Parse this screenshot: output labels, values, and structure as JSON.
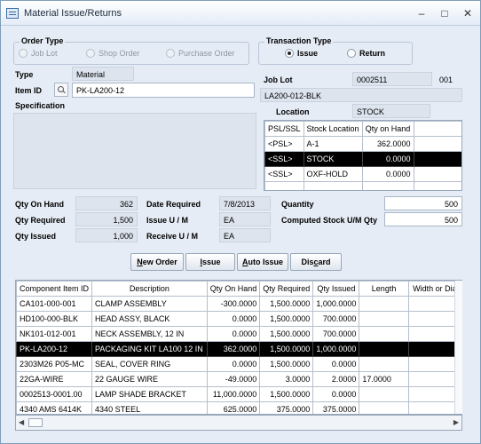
{
  "window": {
    "title": "Material Issue/Returns",
    "minimize": "–",
    "maximize": "□",
    "close": "✕"
  },
  "order_type": {
    "label": "Order Type",
    "options": [
      "Job Lot",
      "Shop Order",
      "Purchase Order"
    ]
  },
  "transaction_type": {
    "label": "Transaction Type",
    "options": [
      "Issue",
      "Return"
    ],
    "selected": "Issue"
  },
  "item": {
    "type_label": "Type",
    "type_value": "Material",
    "id_label": "Item ID",
    "id_value": "PK-LA200-12",
    "spec_label": "Specification"
  },
  "job": {
    "lot_label": "Job Lot",
    "lot_value": "0002511",
    "lot_suffix": "001",
    "lot_desc": "LA200-012-BLK",
    "location_label": "Location",
    "location_value": "STOCK"
  },
  "stock_grid": {
    "headers": [
      "PSL/SSL",
      "Stock Location",
      "Qty on Hand"
    ],
    "rows": [
      {
        "type": "<PSL>",
        "location": "A-1",
        "qty": "362.0000"
      },
      {
        "type": "<SSL>",
        "location": "STOCK",
        "qty": "0.0000"
      },
      {
        "type": "<SSL>",
        "location": "OXF-HOLD",
        "qty": "0.0000"
      }
    ],
    "selected_row": 1
  },
  "quantities": {
    "on_hand_label": "Qty On Hand",
    "on_hand": "362",
    "required_label": "Qty Required",
    "required": "1,500",
    "issued_label": "Qty Issued",
    "issued": "1,000",
    "date_required_label": "Date Required",
    "date_required": "7/8/2013",
    "issue_um_label": "Issue U / M",
    "issue_um": "EA",
    "receive_um_label": "Receive U / M",
    "receive_um": "EA",
    "quantity_label": "Quantity",
    "quantity": "500",
    "computed_label": "Computed Stock U/M Qty",
    "computed": "500"
  },
  "buttons": {
    "new_order_pre": "",
    "new_order_key": "N",
    "new_order_post": "ew Order",
    "issue_pre": "",
    "issue_key": "I",
    "issue_post": "ssue",
    "auto_issue_pre": "",
    "auto_issue_key": "A",
    "auto_issue_post": "uto Issue",
    "discard_pre": "Dis",
    "discard_key": "c",
    "discard_post": "ard"
  },
  "components": {
    "headers": [
      "Component Item ID",
      "Description",
      "Qty On Hand",
      "Qty Required",
      "Qty Issued",
      "Length",
      "Width or Dia"
    ],
    "rows": [
      [
        "CA101-000-001",
        "CLAMP ASSEMBLY",
        "-300.0000",
        "1,500.0000",
        "1,000.0000",
        "",
        ""
      ],
      [
        "HD100-000-BLK",
        "HEAD ASSY, BLACK",
        "0.0000",
        "1,500.0000",
        "700.0000",
        "",
        ""
      ],
      [
        "NK101-012-001",
        "NECK ASSEMBLY, 12 IN",
        "0.0000",
        "1,500.0000",
        "700.0000",
        "",
        ""
      ],
      [
        "PK-LA200-12",
        "PACKAGING KIT LA100 12 IN",
        "362.0000",
        "1,500.0000",
        "1,000.0000",
        "",
        ""
      ],
      [
        "2303M26 P05-MC",
        "SEAL, COVER RING",
        "0.0000",
        "1,500.0000",
        "0.0000",
        "",
        ""
      ],
      [
        "22GA-WIRE",
        "22 GAUGE WIRE",
        "-49.0000",
        "3.0000",
        "2.0000",
        "17.0000",
        ""
      ],
      [
        "0002513-0001.00",
        "LAMP SHADE BRACKET",
        "11,000.0000",
        "1,500.0000",
        "0.0000",
        "",
        ""
      ],
      [
        "4340 AMS 6414K",
        "4340 STEEL",
        "625.0000",
        "375.0000",
        "375.0000",
        "",
        ""
      ]
    ],
    "selected_row": 3
  },
  "scrollbar": {
    "left_arrow": "◀",
    "right_arrow": "▶"
  }
}
